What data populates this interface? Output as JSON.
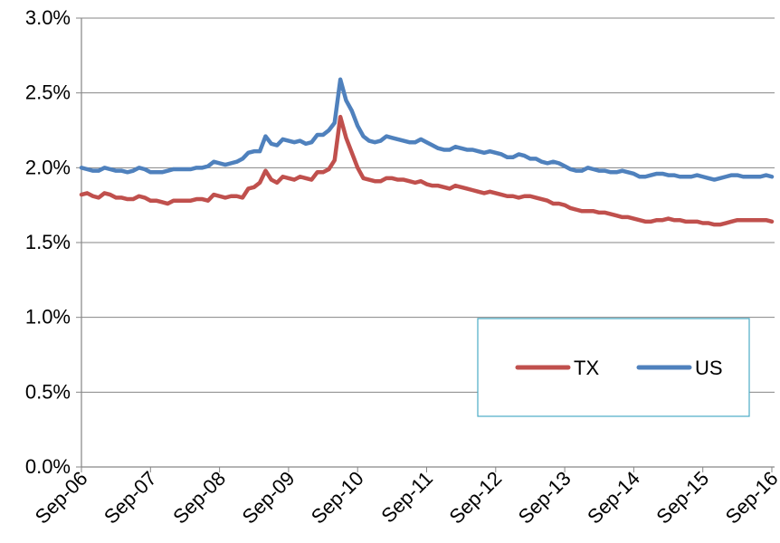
{
  "chart_data": {
    "type": "line",
    "title": "",
    "xlabel": "",
    "ylabel": "",
    "ylim": [
      0,
      0.03
    ],
    "y_tick_labels": [
      "0.0%",
      "0.5%",
      "1.0%",
      "1.5%",
      "2.0%",
      "2.5%",
      "3.0%"
    ],
    "x_tick_labels": [
      "Sep-06",
      "Sep-07",
      "Sep-08",
      "Sep-09",
      "Sep-10",
      "Sep-11",
      "Sep-12",
      "Sep-13",
      "Sep-14",
      "Sep-15",
      "Sep-16"
    ],
    "grid": "horizontal",
    "legend_position": "bottom-right",
    "x_start": "Sep-06",
    "x_frequency": "monthly",
    "series": [
      {
        "name": "TX",
        "color": "#c0504d",
        "values": [
          0.0182,
          0.0183,
          0.0181,
          0.018,
          0.0183,
          0.0182,
          0.018,
          0.018,
          0.0179,
          0.0179,
          0.0181,
          0.018,
          0.0178,
          0.0178,
          0.0177,
          0.0176,
          0.0178,
          0.0178,
          0.0178,
          0.0178,
          0.0179,
          0.0179,
          0.0178,
          0.0182,
          0.0181,
          0.018,
          0.0181,
          0.0181,
          0.018,
          0.0186,
          0.0187,
          0.019,
          0.0198,
          0.0192,
          0.019,
          0.0194,
          0.0193,
          0.0192,
          0.0194,
          0.0193,
          0.0192,
          0.0197,
          0.0197,
          0.0199,
          0.0205,
          0.0234,
          0.022,
          0.021,
          0.02,
          0.0193,
          0.0192,
          0.0191,
          0.0191,
          0.0193,
          0.0193,
          0.0192,
          0.0192,
          0.0191,
          0.019,
          0.0191,
          0.0189,
          0.0188,
          0.0188,
          0.0187,
          0.0186,
          0.0188,
          0.0187,
          0.0186,
          0.0185,
          0.0184,
          0.0183,
          0.0184,
          0.0183,
          0.0182,
          0.0181,
          0.0181,
          0.018,
          0.0181,
          0.0181,
          0.018,
          0.0179,
          0.0178,
          0.0176,
          0.0176,
          0.0175,
          0.0173,
          0.0172,
          0.0171,
          0.0171,
          0.0171,
          0.017,
          0.017,
          0.0169,
          0.0168,
          0.0167,
          0.0167,
          0.0166,
          0.0165,
          0.0164,
          0.0164,
          0.0165,
          0.0165,
          0.0166,
          0.0165,
          0.0165,
          0.0164,
          0.0164,
          0.0164,
          0.0163,
          0.0163,
          0.0162,
          0.0162,
          0.0163,
          0.0164,
          0.0165,
          0.0165,
          0.0165,
          0.0165,
          0.0165,
          0.0165,
          0.0164
        ]
      },
      {
        "name": "US",
        "color": "#4f81bd",
        "values": [
          0.02,
          0.0199,
          0.0198,
          0.0198,
          0.02,
          0.0199,
          0.0198,
          0.0198,
          0.0197,
          0.0198,
          0.02,
          0.0199,
          0.0197,
          0.0197,
          0.0197,
          0.0198,
          0.0199,
          0.0199,
          0.0199,
          0.0199,
          0.02,
          0.02,
          0.0201,
          0.0204,
          0.0203,
          0.0202,
          0.0203,
          0.0204,
          0.0206,
          0.021,
          0.0211,
          0.0211,
          0.0221,
          0.0216,
          0.0215,
          0.0219,
          0.0218,
          0.0217,
          0.0218,
          0.0216,
          0.0217,
          0.0222,
          0.0222,
          0.0225,
          0.023,
          0.0259,
          0.0245,
          0.0238,
          0.0228,
          0.0221,
          0.0218,
          0.0217,
          0.0218,
          0.0221,
          0.022,
          0.0219,
          0.0218,
          0.0217,
          0.0217,
          0.0219,
          0.0217,
          0.0215,
          0.0213,
          0.0212,
          0.0212,
          0.0214,
          0.0213,
          0.0212,
          0.0212,
          0.0211,
          0.021,
          0.0211,
          0.021,
          0.0209,
          0.0207,
          0.0207,
          0.0209,
          0.0208,
          0.0206,
          0.0206,
          0.0204,
          0.0203,
          0.0204,
          0.0203,
          0.0201,
          0.0199,
          0.0198,
          0.0198,
          0.02,
          0.0199,
          0.0198,
          0.0198,
          0.0197,
          0.0197,
          0.0198,
          0.0197,
          0.0196,
          0.0194,
          0.0194,
          0.0195,
          0.0196,
          0.0196,
          0.0195,
          0.0195,
          0.0194,
          0.0194,
          0.0194,
          0.0195,
          0.0194,
          0.0193,
          0.0192,
          0.0193,
          0.0194,
          0.0195,
          0.0195,
          0.0194,
          0.0194,
          0.0194,
          0.0194,
          0.0195,
          0.0194
        ]
      }
    ]
  }
}
